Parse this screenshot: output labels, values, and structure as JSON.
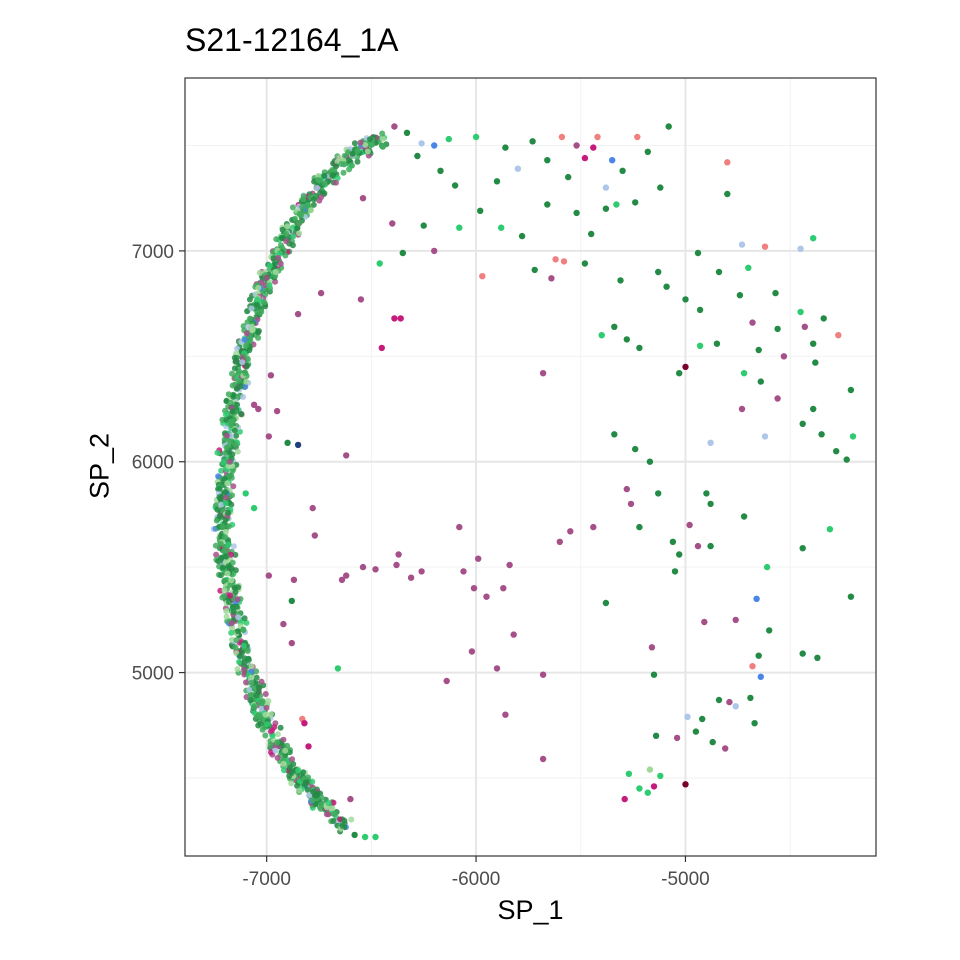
{
  "chart_data": {
    "type": "scatter",
    "title": "S21-12164_1A",
    "xlabel": "SP_1",
    "ylabel": "SP_2",
    "xlim": [
      -7390,
      -4090
    ],
    "ylim": [
      4130,
      7820
    ],
    "x_ticks": [
      -7000,
      -6000,
      -5000
    ],
    "y_ticks": [
      5000,
      6000,
      7000
    ],
    "grid": true,
    "legend": "none",
    "colors": {
      "dark_green": "#238b45",
      "mid_green": "#41ab5d",
      "bright_green": "#2ecc71",
      "light_green": "#a1d99b",
      "mauve": "#a6508a",
      "magenta": "#c51b7d",
      "salmon": "#f08080",
      "blue": "#4a86e8",
      "light_blue": "#aec7e8",
      "navy": "#1f3f7f",
      "dark_red": "#7a0030"
    },
    "arc_band": [
      [
        -6440,
        7545
      ],
      [
        -6620,
        7440
      ],
      [
        -6780,
        7270
      ],
      [
        -6910,
        7060
      ],
      [
        -7030,
        6800
      ],
      [
        -7110,
        6500
      ],
      [
        -7170,
        6200
      ],
      [
        -7200,
        5900
      ],
      [
        -7210,
        5700
      ],
      [
        -7180,
        5400
      ],
      [
        -7120,
        5100
      ],
      [
        -7040,
        4850
      ],
      [
        -6930,
        4620
      ],
      [
        -6790,
        4430
      ],
      [
        -6620,
        4260
      ]
    ],
    "points": [
      {
        "x": -5590,
        "y": 7540,
        "c": "salmon"
      },
      {
        "x": -5420,
        "y": 7540,
        "c": "salmon"
      },
      {
        "x": -5080,
        "y": 7590,
        "c": "dark_green"
      },
      {
        "x": -5860,
        "y": 7490,
        "c": "dark_green"
      },
      {
        "x": -5730,
        "y": 7520,
        "c": "dark_green"
      },
      {
        "x": -5660,
        "y": 7430,
        "c": "dark_green"
      },
      {
        "x": -5560,
        "y": 7350,
        "c": "dark_green"
      },
      {
        "x": -5480,
        "y": 7440,
        "c": "magenta"
      },
      {
        "x": -5300,
        "y": 7380,
        "c": "dark_green"
      },
      {
        "x": -5180,
        "y": 7470,
        "c": "dark_green"
      },
      {
        "x": -5900,
        "y": 7330,
        "c": "dark_green"
      },
      {
        "x": -6100,
        "y": 7310,
        "c": "dark_green"
      },
      {
        "x": -6000,
        "y": 7540,
        "c": "bright_green"
      },
      {
        "x": -6130,
        "y": 7530,
        "c": "bright_green"
      },
      {
        "x": -5980,
        "y": 7190,
        "c": "dark_green"
      },
      {
        "x": -5880,
        "y": 7110,
        "c": "bright_green"
      },
      {
        "x": -5780,
        "y": 7070,
        "c": "dark_green"
      },
      {
        "x": -5660,
        "y": 7220,
        "c": "dark_green"
      },
      {
        "x": -5520,
        "y": 7180,
        "c": "dark_green"
      },
      {
        "x": -5450,
        "y": 7080,
        "c": "dark_green"
      },
      {
        "x": -5380,
        "y": 7200,
        "c": "dark_green"
      },
      {
        "x": -5240,
        "y": 7230,
        "c": "dark_green"
      },
      {
        "x": -5120,
        "y": 7300,
        "c": "dark_green"
      },
      {
        "x": -6080,
        "y": 7110,
        "c": "bright_green"
      },
      {
        "x": -6250,
        "y": 7120,
        "c": "dark_green"
      },
      {
        "x": -6400,
        "y": 7130,
        "c": "mauve"
      },
      {
        "x": -6540,
        "y": 7250,
        "c": "mauve"
      },
      {
        "x": -6460,
        "y": 6940,
        "c": "bright_green"
      },
      {
        "x": -6350,
        "y": 6990,
        "c": "dark_green"
      },
      {
        "x": -6200,
        "y": 7000,
        "c": "mauve"
      },
      {
        "x": -5970,
        "y": 6880,
        "c": "salmon"
      },
      {
        "x": -5720,
        "y": 6910,
        "c": "dark_green"
      },
      {
        "x": -5620,
        "y": 6960,
        "c": "salmon"
      },
      {
        "x": -5580,
        "y": 6950,
        "c": "salmon"
      },
      {
        "x": -5480,
        "y": 6940,
        "c": "dark_green"
      },
      {
        "x": -5310,
        "y": 6860,
        "c": "dark_green"
      },
      {
        "x": -5640,
        "y": 6870,
        "c": "mauve"
      },
      {
        "x": -6390,
        "y": 6680,
        "c": "magenta"
      },
      {
        "x": -6360,
        "y": 6680,
        "c": "magenta"
      },
      {
        "x": -6450,
        "y": 6540,
        "c": "magenta"
      },
      {
        "x": -6550,
        "y": 6770,
        "c": "mauve"
      },
      {
        "x": -6850,
        "y": 6700,
        "c": "mauve"
      },
      {
        "x": -6740,
        "y": 6800,
        "c": "mauve"
      },
      {
        "x": -5680,
        "y": 6420,
        "c": "mauve"
      },
      {
        "x": -4800,
        "y": 7270,
        "c": "dark_green"
      },
      {
        "x": -4730,
        "y": 7030,
        "c": "light_blue"
      },
      {
        "x": -4620,
        "y": 7020,
        "c": "salmon"
      },
      {
        "x": -4450,
        "y": 7010,
        "c": "light_blue"
      },
      {
        "x": -4390,
        "y": 7060,
        "c": "bright_green"
      },
      {
        "x": -4940,
        "y": 6990,
        "c": "dark_green"
      },
      {
        "x": -4840,
        "y": 6900,
        "c": "dark_green"
      },
      {
        "x": -5090,
        "y": 6830,
        "c": "dark_green"
      },
      {
        "x": -5000,
        "y": 6770,
        "c": "dark_green"
      },
      {
        "x": -4930,
        "y": 6720,
        "c": "dark_green"
      },
      {
        "x": -4740,
        "y": 6790,
        "c": "dark_green"
      },
      {
        "x": -4570,
        "y": 6800,
        "c": "dark_green"
      },
      {
        "x": -4450,
        "y": 6710,
        "c": "bright_green"
      },
      {
        "x": -4340,
        "y": 6680,
        "c": "dark_green"
      },
      {
        "x": -4680,
        "y": 6660,
        "c": "mauve"
      },
      {
        "x": -4560,
        "y": 6630,
        "c": "dark_green"
      },
      {
        "x": -4430,
        "y": 6640,
        "c": "mauve"
      },
      {
        "x": -4390,
        "y": 6560,
        "c": "dark_green"
      },
      {
        "x": -4270,
        "y": 6600,
        "c": "salmon"
      },
      {
        "x": -4850,
        "y": 6560,
        "c": "dark_green"
      },
      {
        "x": -4930,
        "y": 6550,
        "c": "bright_green"
      },
      {
        "x": -4650,
        "y": 6530,
        "c": "dark_green"
      },
      {
        "x": -4530,
        "y": 6500,
        "c": "mauve"
      },
      {
        "x": -4380,
        "y": 6470,
        "c": "dark_green"
      },
      {
        "x": -4720,
        "y": 6420,
        "c": "bright_green"
      },
      {
        "x": -4640,
        "y": 6380,
        "c": "dark_green"
      },
      {
        "x": -4560,
        "y": 6300,
        "c": "mauve"
      },
      {
        "x": -4390,
        "y": 6250,
        "c": "dark_green"
      },
      {
        "x": -4210,
        "y": 6340,
        "c": "dark_green"
      },
      {
        "x": -4440,
        "y": 6180,
        "c": "dark_green"
      },
      {
        "x": -4620,
        "y": 6120,
        "c": "light_blue"
      },
      {
        "x": -4730,
        "y": 6250,
        "c": "mauve"
      },
      {
        "x": -4880,
        "y": 6090,
        "c": "light_blue"
      },
      {
        "x": -4350,
        "y": 6130,
        "c": "dark_green"
      },
      {
        "x": -4280,
        "y": 6050,
        "c": "dark_green"
      },
      {
        "x": -4200,
        "y": 6120,
        "c": "bright_green"
      },
      {
        "x": -4230,
        "y": 6010,
        "c": "dark_green"
      },
      {
        "x": -5400,
        "y": 6600,
        "c": "bright_green"
      },
      {
        "x": -5340,
        "y": 6640,
        "c": "dark_green"
      },
      {
        "x": -5280,
        "y": 6580,
        "c": "dark_green"
      },
      {
        "x": -5220,
        "y": 6540,
        "c": "dark_green"
      },
      {
        "x": -5000,
        "y": 6450,
        "c": "dark_red"
      },
      {
        "x": -5030,
        "y": 6420,
        "c": "dark_green"
      },
      {
        "x": -5340,
        "y": 6130,
        "c": "dark_green"
      },
      {
        "x": -5240,
        "y": 6060,
        "c": "dark_green"
      },
      {
        "x": -5170,
        "y": 6000,
        "c": "dark_green"
      },
      {
        "x": -5280,
        "y": 5870,
        "c": "mauve"
      },
      {
        "x": -5260,
        "y": 5800,
        "c": "mauve"
      },
      {
        "x": -5130,
        "y": 5850,
        "c": "dark_green"
      },
      {
        "x": -5440,
        "y": 5690,
        "c": "mauve"
      },
      {
        "x": -5220,
        "y": 5690,
        "c": "dark_green"
      },
      {
        "x": -5060,
        "y": 5620,
        "c": "dark_green"
      },
      {
        "x": -5030,
        "y": 5560,
        "c": "dark_green"
      },
      {
        "x": -4940,
        "y": 5600,
        "c": "mauve"
      },
      {
        "x": -4880,
        "y": 5600,
        "c": "dark_green"
      },
      {
        "x": -4900,
        "y": 5850,
        "c": "dark_green"
      },
      {
        "x": -4880,
        "y": 5800,
        "c": "dark_green"
      },
      {
        "x": -4720,
        "y": 5740,
        "c": "dark_green"
      },
      {
        "x": -4980,
        "y": 5700,
        "c": "mauve"
      },
      {
        "x": -5550,
        "y": 5670,
        "c": "mauve"
      },
      {
        "x": -5600,
        "y": 5620,
        "c": "mauve"
      },
      {
        "x": -5050,
        "y": 5480,
        "c": "dark_green"
      },
      {
        "x": -4610,
        "y": 5500,
        "c": "bright_green"
      },
      {
        "x": -4440,
        "y": 5590,
        "c": "dark_green"
      },
      {
        "x": -4310,
        "y": 5680,
        "c": "bright_green"
      },
      {
        "x": -4210,
        "y": 5360,
        "c": "dark_green"
      },
      {
        "x": -5380,
        "y": 5330,
        "c": "dark_green"
      },
      {
        "x": -4660,
        "y": 5350,
        "c": "blue"
      },
      {
        "x": -4910,
        "y": 5240,
        "c": "mauve"
      },
      {
        "x": -4760,
        "y": 5250,
        "c": "mauve"
      },
      {
        "x": -4600,
        "y": 5200,
        "c": "dark_green"
      },
      {
        "x": -5160,
        "y": 5120,
        "c": "mauve"
      },
      {
        "x": -4440,
        "y": 5090,
        "c": "dark_green"
      },
      {
        "x": -4370,
        "y": 5070,
        "c": "dark_green"
      },
      {
        "x": -4650,
        "y": 5080,
        "c": "dark_green"
      },
      {
        "x": -4680,
        "y": 5030,
        "c": "salmon"
      },
      {
        "x": -4640,
        "y": 4980,
        "c": "blue"
      },
      {
        "x": -5150,
        "y": 4990,
        "c": "dark_green"
      },
      {
        "x": -4840,
        "y": 4870,
        "c": "dark_green"
      },
      {
        "x": -4790,
        "y": 4860,
        "c": "mauve"
      },
      {
        "x": -4760,
        "y": 4840,
        "c": "light_blue"
      },
      {
        "x": -4690,
        "y": 4880,
        "c": "dark_green"
      },
      {
        "x": -4670,
        "y": 4760,
        "c": "dark_green"
      },
      {
        "x": -4990,
        "y": 4790,
        "c": "light_blue"
      },
      {
        "x": -4950,
        "y": 4720,
        "c": "dark_green"
      },
      {
        "x": -4870,
        "y": 4670,
        "c": "dark_green"
      },
      {
        "x": -4810,
        "y": 4640,
        "c": "mauve"
      },
      {
        "x": -5140,
        "y": 4700,
        "c": "dark_green"
      },
      {
        "x": -5040,
        "y": 4690,
        "c": "mauve"
      },
      {
        "x": -4920,
        "y": 4780,
        "c": "dark_green"
      },
      {
        "x": -5270,
        "y": 4520,
        "c": "bright_green"
      },
      {
        "x": -5170,
        "y": 4540,
        "c": "light_green"
      },
      {
        "x": -5120,
        "y": 4510,
        "c": "bright_green"
      },
      {
        "x": -5150,
        "y": 4460,
        "c": "magenta"
      },
      {
        "x": -5220,
        "y": 4450,
        "c": "bright_green"
      },
      {
        "x": -5180,
        "y": 4430,
        "c": "bright_green"
      },
      {
        "x": -5000,
        "y": 4470,
        "c": "dark_red"
      },
      {
        "x": -5290,
        "y": 4400,
        "c": "magenta"
      },
      {
        "x": -5990,
        "y": 5540,
        "c": "mauve"
      },
      {
        "x": -6060,
        "y": 5480,
        "c": "mauve"
      },
      {
        "x": -6010,
        "y": 5400,
        "c": "mauve"
      },
      {
        "x": -5950,
        "y": 5360,
        "c": "mauve"
      },
      {
        "x": -5840,
        "y": 5510,
        "c": "mauve"
      },
      {
        "x": -5870,
        "y": 5400,
        "c": "mauve"
      },
      {
        "x": -5820,
        "y": 5180,
        "c": "mauve"
      },
      {
        "x": -6020,
        "y": 5100,
        "c": "mauve"
      },
      {
        "x": -5900,
        "y": 5020,
        "c": "mauve"
      },
      {
        "x": -6140,
        "y": 4960,
        "c": "mauve"
      },
      {
        "x": -5680,
        "y": 4990,
        "c": "mauve"
      },
      {
        "x": -5860,
        "y": 4800,
        "c": "mauve"
      },
      {
        "x": -5680,
        "y": 4590,
        "c": "mauve"
      },
      {
        "x": -6080,
        "y": 5690,
        "c": "mauve"
      },
      {
        "x": -6380,
        "y": 5510,
        "c": "mauve"
      },
      {
        "x": -6370,
        "y": 5560,
        "c": "mauve"
      },
      {
        "x": -6480,
        "y": 5490,
        "c": "mauve"
      },
      {
        "x": -6540,
        "y": 5500,
        "c": "mauve"
      },
      {
        "x": -6260,
        "y": 5480,
        "c": "mauve"
      },
      {
        "x": -6310,
        "y": 5450,
        "c": "mauve"
      },
      {
        "x": -6640,
        "y": 5440,
        "c": "mauve"
      },
      {
        "x": -6620,
        "y": 5460,
        "c": "mauve"
      },
      {
        "x": -6780,
        "y": 5780,
        "c": "mauve"
      },
      {
        "x": -6770,
        "y": 5650,
        "c": "mauve"
      },
      {
        "x": -6850,
        "y": 6080,
        "c": "navy"
      },
      {
        "x": -6620,
        "y": 6030,
        "c": "mauve"
      },
      {
        "x": -6870,
        "y": 5440,
        "c": "mauve"
      },
      {
        "x": -6990,
        "y": 5460,
        "c": "mauve"
      },
      {
        "x": -6880,
        "y": 5340,
        "c": "dark_green"
      },
      {
        "x": -6920,
        "y": 5230,
        "c": "mauve"
      },
      {
        "x": -6880,
        "y": 5140,
        "c": "mauve"
      },
      {
        "x": -6660,
        "y": 5020,
        "c": "bright_green"
      },
      {
        "x": -6980,
        "y": 6410,
        "c": "mauve"
      },
      {
        "x": -7040,
        "y": 6250,
        "c": "mauve"
      },
      {
        "x": -6950,
        "y": 6240,
        "c": "mauve"
      },
      {
        "x": -6990,
        "y": 6120,
        "c": "mauve"
      },
      {
        "x": -6900,
        "y": 6090,
        "c": "dark_green"
      },
      {
        "x": -7060,
        "y": 6270,
        "c": "mauve"
      },
      {
        "x": -7100,
        "y": 5850,
        "c": "bright_green"
      },
      {
        "x": -7060,
        "y": 5780,
        "c": "bright_green"
      },
      {
        "x": -6830,
        "y": 4780,
        "c": "salmon"
      },
      {
        "x": -6820,
        "y": 4760,
        "c": "magenta"
      },
      {
        "x": -6800,
        "y": 4650,
        "c": "magenta"
      },
      {
        "x": -6600,
        "y": 4400,
        "c": "mauve"
      },
      {
        "x": -6530,
        "y": 4220,
        "c": "bright_green"
      },
      {
        "x": -6580,
        "y": 4230,
        "c": "dark_green"
      },
      {
        "x": -6480,
        "y": 4220,
        "c": "bright_green"
      },
      {
        "x": -6390,
        "y": 7590,
        "c": "mauve"
      },
      {
        "x": -6330,
        "y": 7560,
        "c": "dark_green"
      },
      {
        "x": -6260,
        "y": 7510,
        "c": "light_blue"
      },
      {
        "x": -6200,
        "y": 7500,
        "c": "blue"
      },
      {
        "x": -6280,
        "y": 7450,
        "c": "dark_green"
      },
      {
        "x": -6170,
        "y": 7380,
        "c": "dark_green"
      },
      {
        "x": -5520,
        "y": 7500,
        "c": "mauve"
      },
      {
        "x": -5440,
        "y": 7490,
        "c": "magenta"
      },
      {
        "x": -5350,
        "y": 7430,
        "c": "blue"
      },
      {
        "x": -5230,
        "y": 7540,
        "c": "salmon"
      },
      {
        "x": -4800,
        "y": 7420,
        "c": "salmon"
      },
      {
        "x": -5380,
        "y": 7300,
        "c": "light_blue"
      },
      {
        "x": -5330,
        "y": 7220,
        "c": "bright_green"
      },
      {
        "x": -5800,
        "y": 7390,
        "c": "light_blue"
      },
      {
        "x": -5130,
        "y": 6900,
        "c": "dark_green"
      },
      {
        "x": -4700,
        "y": 6920,
        "c": "bright_green"
      }
    ]
  }
}
